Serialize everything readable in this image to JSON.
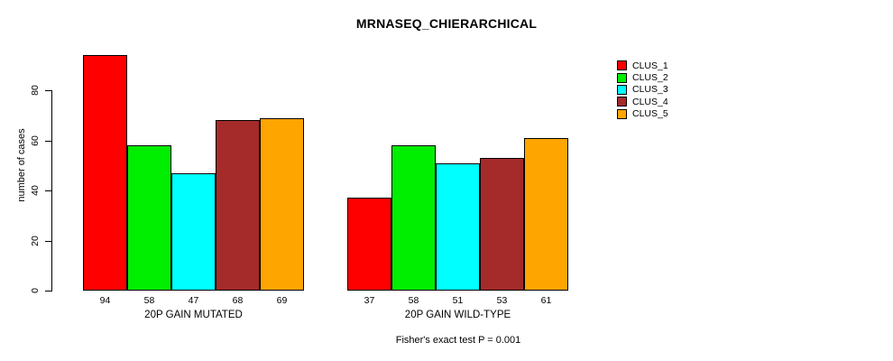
{
  "chart_data": {
    "type": "bar",
    "title": "MRNASEQ_CHIERARCHICAL",
    "xlabel": "",
    "ylabel": "number of cases",
    "ylim": [
      0,
      94
    ],
    "yticks": [
      0,
      20,
      40,
      60,
      80
    ],
    "grid": false,
    "legend_position": "right",
    "values_shown_below_bars": true,
    "categories": [
      "20P GAIN MUTATED",
      "20P GAIN WILD-TYPE"
    ],
    "series": [
      {
        "name": "CLUS_1",
        "color": "#FF0000",
        "values": [
          94,
          37
        ]
      },
      {
        "name": "CLUS_2",
        "color": "#00EE00",
        "values": [
          58,
          58
        ]
      },
      {
        "name": "CLUS_3",
        "color": "#00FFFF",
        "values": [
          47,
          51
        ]
      },
      {
        "name": "CLUS_4",
        "color": "#A52A2A",
        "values": [
          68,
          53
        ]
      },
      {
        "name": "CLUS_5",
        "color": "#FFA500",
        "values": [
          69,
          61
        ]
      }
    ],
    "annotation": "Fisher's exact test P = 0.001"
  }
}
